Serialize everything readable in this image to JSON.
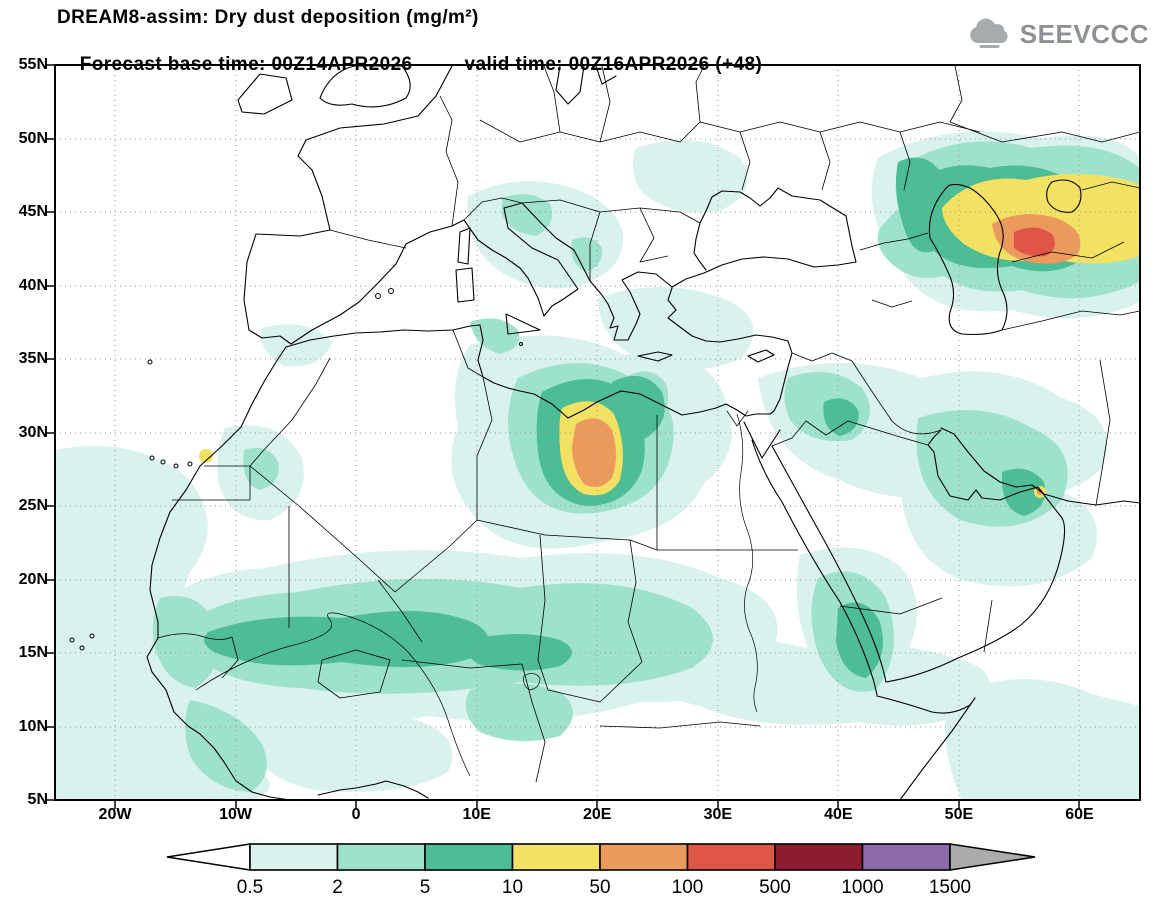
{
  "header": {
    "title": "DREAM8-assim: Dry dust deposition (mg/m²)",
    "base_time": "Forecast base time: 00Z14APR2026",
    "valid_time": "valid time: 00Z16APR2026 (+48)",
    "logo_text": "SEEVCCC"
  },
  "axes": {
    "y_ticks": [
      "55N",
      "50N",
      "45N",
      "40N",
      "35N",
      "30N",
      "25N",
      "20N",
      "15N",
      "10N",
      "5N"
    ],
    "x_ticks": [
      "20W",
      "10W",
      "0",
      "10E",
      "20E",
      "30E",
      "40E",
      "50E",
      "60E"
    ]
  },
  "colorbar": {
    "labels": [
      "0.5",
      "2",
      "5",
      "10",
      "50",
      "100",
      "500",
      "1000",
      "1500"
    ],
    "colors": [
      "#ffffff",
      "#d9f2ee",
      "#9fe2cb",
      "#4cbd94",
      "#f3e164",
      "#eb9a5e",
      "#df5646",
      "#8e1c30",
      "#8c6bad",
      "#ababab"
    ]
  }
}
